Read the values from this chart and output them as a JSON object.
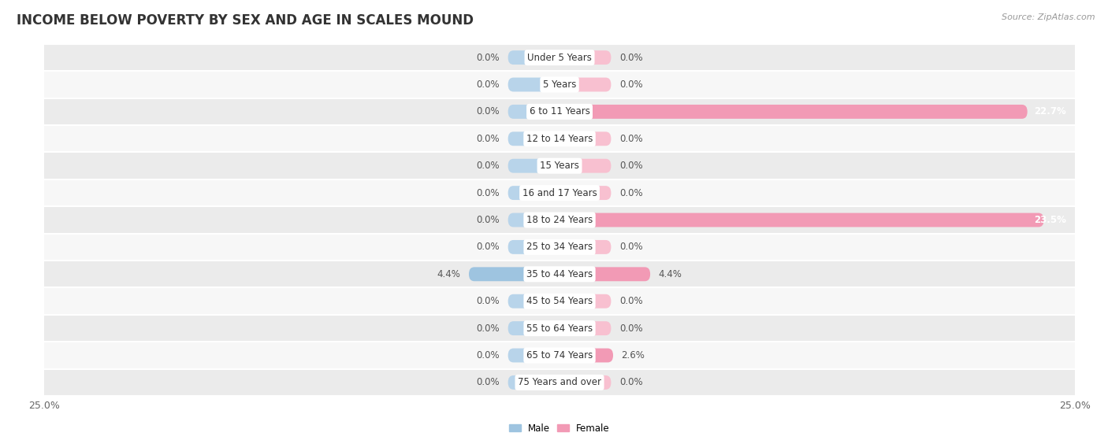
{
  "title": "INCOME BELOW POVERTY BY SEX AND AGE IN SCALES MOUND",
  "source": "Source: ZipAtlas.com",
  "categories": [
    "Under 5 Years",
    "5 Years",
    "6 to 11 Years",
    "12 to 14 Years",
    "15 Years",
    "16 and 17 Years",
    "18 to 24 Years",
    "25 to 34 Years",
    "35 to 44 Years",
    "45 to 54 Years",
    "55 to 64 Years",
    "65 to 74 Years",
    "75 Years and over"
  ],
  "male": [
    0.0,
    0.0,
    0.0,
    0.0,
    0.0,
    0.0,
    0.0,
    0.0,
    4.4,
    0.0,
    0.0,
    0.0,
    0.0
  ],
  "female": [
    0.0,
    0.0,
    22.7,
    0.0,
    0.0,
    0.0,
    23.5,
    0.0,
    4.4,
    0.0,
    0.0,
    2.6,
    0.0
  ],
  "male_color": "#9ec4e0",
  "female_color": "#f29ab5",
  "male_stub_color": "#b8d4ea",
  "female_stub_color": "#f8c0d0",
  "row_bg_even": "#ebebeb",
  "row_bg_odd": "#f7f7f7",
  "xlim": 25.0,
  "bar_height": 0.52,
  "stub_size": 2.5,
  "title_fontsize": 12,
  "label_fontsize": 8.5,
  "cat_fontsize": 8.5,
  "axis_fontsize": 9,
  "source_fontsize": 8
}
